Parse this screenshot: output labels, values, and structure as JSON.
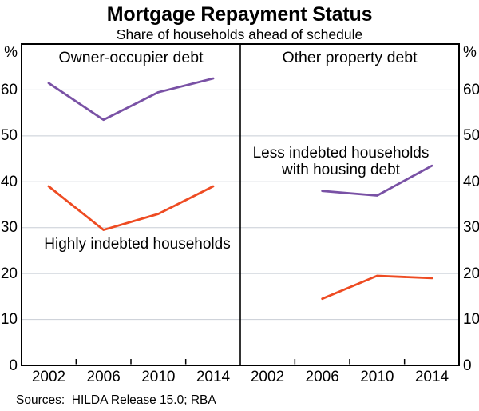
{
  "chart": {
    "title": "Mortgage Repayment Status",
    "subtitle": "Share of households ahead of schedule",
    "left_unit": "%",
    "right_unit": "%",
    "footer": "Sources:  HILDA Release 15.0; RBA",
    "series_labels": {
      "purple_line1": "Less indebted households",
      "purple_line2": "with housing debt",
      "orange": "Highly indebted households"
    }
  },
  "colors": {
    "purple": "#7951A5",
    "orange": "#EE4B22",
    "gridline": "#C8CDD5",
    "axis": "#000000",
    "background": "#FFFFFF"
  },
  "chart_data": {
    "type": "line",
    "title": "Mortgage Repayment Status",
    "subtitle": "Share of households ahead of schedule",
    "ylabel": "%",
    "ylim": [
      0,
      70
    ],
    "yticks": [
      0,
      10,
      20,
      30,
      40,
      50,
      60
    ],
    "grid": true,
    "legend_position": "inline-labels",
    "panels": [
      {
        "title": "Owner-occupier debt",
        "categories": [
          "2002",
          "2006",
          "2010",
          "2014"
        ],
        "series": [
          {
            "name": "Less indebted households with housing debt",
            "color": "#7951A5",
            "x": [
              2002,
              2006,
              2010,
              2014
            ],
            "values": [
              61.5,
              53.5,
              59.5,
              62.5
            ]
          },
          {
            "name": "Highly indebted households",
            "color": "#EE4B22",
            "x": [
              2002,
              2006,
              2010,
              2014
            ],
            "values": [
              39,
              29.5,
              33,
              39
            ]
          }
        ]
      },
      {
        "title": "Other property debt",
        "categories": [
          "2002",
          "2006",
          "2010",
          "2014"
        ],
        "series": [
          {
            "name": "Less indebted households with housing debt",
            "color": "#7951A5",
            "x": [
              2006,
              2010,
              2014
            ],
            "values": [
              38,
              37,
              43.5
            ]
          },
          {
            "name": "Highly indebted households",
            "color": "#EE4B22",
            "x": [
              2006,
              2010,
              2014
            ],
            "values": [
              14.5,
              19.5,
              19
            ]
          }
        ]
      }
    ]
  }
}
